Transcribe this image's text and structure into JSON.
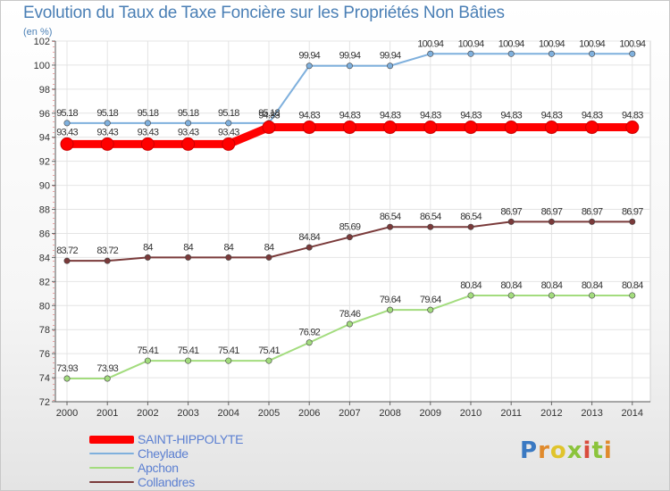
{
  "chart_data": {
    "type": "line",
    "title": "Evolution du Taux de Taxe Foncière sur les Propriétés Non Bâties",
    "subtitle": "(en %)",
    "ylim": [
      72,
      102
    ],
    "ytick_step": 2,
    "x": [
      "2000",
      "2001",
      "2002",
      "2003",
      "2004",
      "2005",
      "2006",
      "2007",
      "2008",
      "2009",
      "2010",
      "2011",
      "2012",
      "2013",
      "2014"
    ],
    "series": [
      {
        "name": "Cheylade",
        "color": "#7fb0dd",
        "values": [
          95.18,
          95.18,
          95.18,
          95.18,
          95.18,
          95.18,
          99.94,
          99.94,
          99.94,
          100.94,
          100.94,
          100.94,
          100.94,
          100.94,
          100.94
        ],
        "labels": [
          "95.18",
          "95.18",
          "95.18",
          "95.18",
          "95.18",
          "95.18",
          "99.94",
          "99.94",
          "99.94",
          "100.94",
          "100.94",
          "100.94",
          "100.94",
          "100.94",
          "100.94"
        ]
      },
      {
        "name": "Apchon",
        "color": "#a3dc7e",
        "values": [
          73.93,
          73.93,
          75.41,
          75.41,
          75.41,
          75.41,
          76.92,
          78.46,
          79.64,
          79.64,
          80.84,
          80.84,
          80.84,
          80.84,
          80.84
        ],
        "labels": [
          "73.93",
          "73.93",
          "75.41",
          "75.41",
          "75.41",
          "75.41",
          "76.92",
          "78.46",
          "79.64",
          "79.64",
          "80.84",
          "80.84",
          "80.84",
          "80.84",
          "80.84"
        ]
      },
      {
        "name": "Collandres",
        "color": "#7a3a3a",
        "values": [
          83.72,
          83.72,
          84,
          84,
          84,
          84,
          84.84,
          85.69,
          86.54,
          86.54,
          86.54,
          86.97,
          86.97,
          86.97,
          86.97
        ],
        "labels": [
          "83.72",
          "83.72",
          "84",
          "84",
          "84",
          "84",
          "84.84",
          "85.69",
          "86.54",
          "86.54",
          "86.54",
          "86.97",
          "86.97",
          "86.97",
          "86.97"
        ]
      },
      {
        "name": "SAINT-HIPPOLYTE",
        "color": "#ff0000",
        "values": [
          93.43,
          93.43,
          93.43,
          93.43,
          93.43,
          94.83,
          94.83,
          94.83,
          94.83,
          94.83,
          94.83,
          94.83,
          94.83,
          94.83,
          94.83
        ],
        "labels": [
          "93.43",
          "93.43",
          "93.43",
          "93.43",
          "93.43",
          "94.83",
          "94.83",
          "94.83",
          "94.83",
          "94.83",
          "94.83",
          "94.83",
          "94.83",
          "94.83",
          "94.83"
        ]
      }
    ],
    "legend": [
      "SAINT-HIPPOLYTE",
      "Cheylade",
      "Apchon",
      "Collandres"
    ],
    "legend_position": "bottom-left",
    "grid": true
  },
  "logo": {
    "text": "Proxiti"
  }
}
